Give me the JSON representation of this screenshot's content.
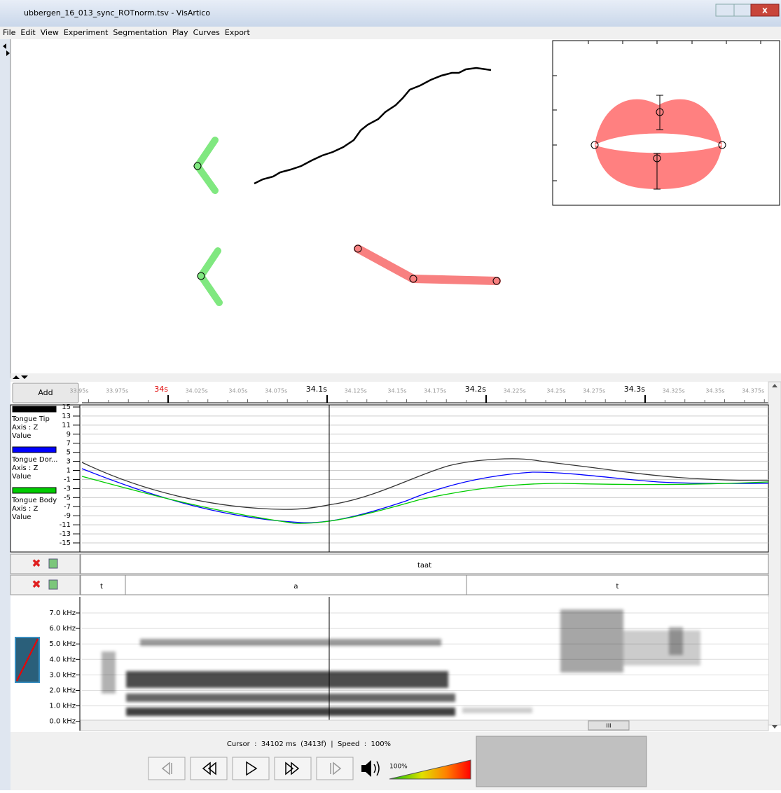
{
  "window": {
    "title": "ubbergen_16_013_sync_ROTnorm.tsv - VisArtico"
  },
  "menu": [
    "File",
    "Edit",
    "View",
    "Experiment",
    "Segmentation",
    "Play",
    "Curves",
    "Export"
  ],
  "timeline": {
    "button": "Add",
    "ticks": [
      "33.95s",
      "33.975s",
      "34s",
      "34.025s",
      "34.05s",
      "34.075s",
      "34.1s",
      "34.125s",
      "34.15s",
      "34.175s",
      "34.2s",
      "34.225s",
      "34.25s",
      "34.275s",
      "34.3s",
      "34.325s",
      "34.35s",
      "34.375s"
    ]
  },
  "curves": {
    "legend": [
      {
        "name": "Tongue Tip",
        "axis": "Axis : Z",
        "unit": "Value",
        "color": "#000000"
      },
      {
        "name": "Tongue Dor...",
        "axis": "Axis : Z",
        "unit": "Value",
        "color": "#0000ff"
      },
      {
        "name": "Tongue Body",
        "axis": "Axis : Z",
        "unit": "Value",
        "color": "#00cc00"
      }
    ],
    "yticks": [
      15,
      13,
      11,
      9,
      7,
      5,
      3,
      1,
      -1,
      -3,
      -5,
      -7,
      -9,
      -11,
      -13,
      -15
    ]
  },
  "tiers": [
    [
      "taat"
    ],
    [
      "t",
      "a",
      "t"
    ]
  ],
  "spectrogram": {
    "yticks": [
      "7.0 kHz",
      "6.0 kHz",
      "5.0 kHz",
      "4.0 kHz",
      "3.0 kHz",
      "2.0 kHz",
      "1.0 kHz",
      "0.0 kHz"
    ]
  },
  "status": {
    "text": "Cursor  :  34102 ms  (3413f)  |  Speed  :  100%",
    "volume": "100%"
  },
  "scrollbar": {
    "thumb": "III"
  }
}
